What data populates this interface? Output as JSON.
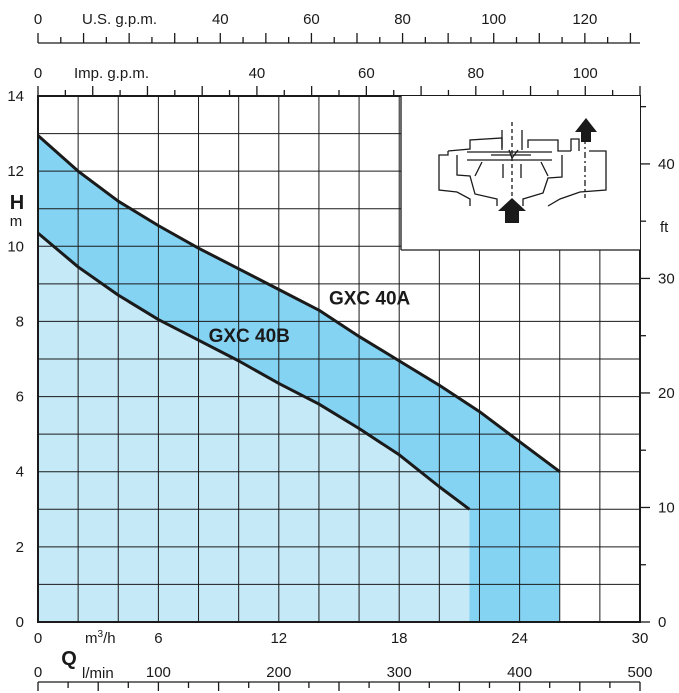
{
  "chart_data": {
    "type": "area",
    "x": [
      0,
      2,
      4,
      6,
      8,
      10,
      12,
      14,
      16,
      18,
      20,
      22,
      24,
      26
    ],
    "xlabel": "Q",
    "x_unit": "m³/h",
    "xlim": [
      0,
      30
    ],
    "ylabel": "H",
    "y_unit": "m",
    "ylim": [
      0,
      14
    ],
    "y_ticks": [
      "0",
      "2",
      "4",
      "6",
      "8",
      "10",
      "12",
      "14"
    ],
    "x_ticks": [
      "0",
      "6",
      "12",
      "18",
      "24",
      "30"
    ],
    "grid": true,
    "series": [
      {
        "name": "GXC 40A",
        "x": [
          0,
          2,
          4,
          6,
          8,
          10,
          12,
          14,
          16,
          18,
          20,
          22,
          24,
          26,
          26
        ],
        "values": [
          12.95,
          12.0,
          11.2,
          10.55,
          9.95,
          9.4,
          8.85,
          8.3,
          7.6,
          6.95,
          6.3,
          5.6,
          4.8,
          4.0,
          0
        ],
        "color": "#85d3f3"
      },
      {
        "name": "GXC 40B",
        "x": [
          0,
          2,
          4,
          6,
          8,
          10,
          12,
          14,
          16,
          18,
          20,
          21.5,
          21.5
        ],
        "values": [
          10.35,
          9.45,
          8.7,
          8.05,
          7.5,
          6.95,
          6.35,
          5.8,
          5.15,
          4.45,
          3.6,
          3.0,
          0
        ],
        "color": "#c6e9f8"
      }
    ],
    "secondary_axes": {
      "lmin": {
        "label": "l/min",
        "ticks": [
          "0",
          "100",
          "200",
          "300",
          "400",
          "500"
        ],
        "range": [
          0,
          500
        ]
      },
      "us_gpm": {
        "label": "U.S. g.p.m.",
        "ticks": [
          "0",
          "40",
          "60",
          "80",
          "100",
          "120"
        ],
        "range": [
          0,
          132.1
        ]
      },
      "imp_gpm": {
        "label": "Imp. g.p.m.",
        "ticks": [
          "0",
          "40",
          "60",
          "80",
          "100"
        ],
        "range": [
          0,
          110
        ]
      },
      "ft": {
        "label": "ft",
        "ticks": [
          "0",
          "10",
          "20",
          "30",
          "40"
        ],
        "range": [
          0,
          45.93
        ]
      }
    },
    "inset": {
      "icon": "pump-cross-section-icon"
    },
    "fill_colors": {
      "band": "#85d3f3",
      "lower": "#c6e9f8"
    }
  }
}
